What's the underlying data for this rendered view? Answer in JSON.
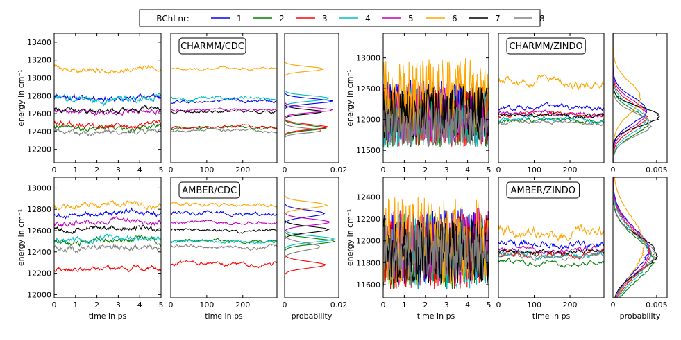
{
  "legend": {
    "title": "BChl nr:",
    "entries": [
      {
        "label": "1",
        "color": "#0000ff"
      },
      {
        "label": "2",
        "color": "#008000"
      },
      {
        "label": "3",
        "color": "#ff0000"
      },
      {
        "label": "4",
        "color": "#00bfbf"
      },
      {
        "label": "5",
        "color": "#bf00bf"
      },
      {
        "label": "6",
        "color": "#ffa500"
      },
      {
        "label": "7",
        "color": "#000000"
      },
      {
        "label": "8",
        "color": "#808080"
      }
    ]
  },
  "chart_data": [
    {
      "id": "charmm-cdc-time",
      "type": "line",
      "title": "",
      "xlabel": "",
      "ylabel": "energy in cm⁻¹",
      "xlim": [
        0,
        5
      ],
      "ylim": [
        12050,
        13500
      ],
      "xticks": [
        0,
        1,
        2,
        3,
        4,
        5
      ],
      "yticks": [
        12200,
        12400,
        12600,
        12800,
        13000,
        13200,
        13400
      ],
      "series": [
        {
          "name": "1",
          "mean": 12780,
          "noise": 45
        },
        {
          "name": "2",
          "mean": 12440,
          "noise": 40
        },
        {
          "name": "3",
          "mean": 12470,
          "noise": 40
        },
        {
          "name": "4",
          "mean": 12760,
          "noise": 50
        },
        {
          "name": "5",
          "mean": 12620,
          "noise": 35
        },
        {
          "name": "6",
          "mean": 13100,
          "noise": 40
        },
        {
          "name": "7",
          "mean": 12640,
          "noise": 35
        },
        {
          "name": "8",
          "mean": 12390,
          "noise": 35
        }
      ]
    },
    {
      "id": "charmm-cdc-long",
      "type": "line",
      "title": "CHARMM/CDC",
      "xlabel": "",
      "ylabel": "",
      "xlim": [
        0,
        295
      ],
      "ylim": [
        12050,
        13500
      ],
      "xticks": [
        0,
        100,
        200
      ],
      "yticks": [],
      "series": [
        {
          "name": "1",
          "mean": 12740,
          "noise": 25
        },
        {
          "name": "2",
          "mean": 12440,
          "noise": 20
        },
        {
          "name": "3",
          "mean": 12450,
          "noise": 20
        },
        {
          "name": "4",
          "mean": 12770,
          "noise": 25
        },
        {
          "name": "5",
          "mean": 12640,
          "noise": 20
        },
        {
          "name": "6",
          "mean": 13100,
          "noise": 20
        },
        {
          "name": "7",
          "mean": 12620,
          "noise": 20
        },
        {
          "name": "8",
          "mean": 12410,
          "noise": 20
        }
      ]
    },
    {
      "id": "charmm-cdc-prob",
      "type": "line",
      "title": "",
      "xlabel": "",
      "ylabel": "",
      "xlim": [
        0,
        0.02
      ],
      "ylim": [
        12050,
        13500
      ],
      "xticks": [
        0,
        0.02
      ],
      "yticks": [],
      "series": [
        {
          "name": "1",
          "mean": 12740,
          "sd": 28,
          "peak": 0.0175
        },
        {
          "name": "2",
          "mean": 12440,
          "sd": 28,
          "peak": 0.015
        },
        {
          "name": "3",
          "mean": 12450,
          "sd": 28,
          "peak": 0.016
        },
        {
          "name": "4",
          "mean": 12770,
          "sd": 28,
          "peak": 0.017
        },
        {
          "name": "5",
          "mean": 12640,
          "sd": 26,
          "peak": 0.018
        },
        {
          "name": "6",
          "mean": 13100,
          "sd": 25,
          "peak": 0.015
        },
        {
          "name": "7",
          "mean": 12620,
          "sd": 25,
          "peak": 0.014
        },
        {
          "name": "8",
          "mean": 12410,
          "sd": 25,
          "peak": 0.014
        }
      ]
    },
    {
      "id": "charmm-zindo-time",
      "type": "line",
      "title": "",
      "xlabel": "",
      "ylabel": "energy in cm⁻¹",
      "xlim": [
        0,
        5
      ],
      "ylim": [
        11300,
        13400
      ],
      "xticks": [
        0,
        1,
        2,
        3,
        4,
        5
      ],
      "yticks": [
        11500,
        12000,
        12500,
        13000
      ],
      "series": [
        {
          "name": "1",
          "mean": 12150,
          "noise": 500
        },
        {
          "name": "2",
          "mean": 12000,
          "noise": 450
        },
        {
          "name": "3",
          "mean": 12050,
          "noise": 500
        },
        {
          "name": "4",
          "mean": 12050,
          "noise": 500
        },
        {
          "name": "5",
          "mean": 12100,
          "noise": 500
        },
        {
          "name": "6",
          "mean": 12400,
          "noise": 600
        },
        {
          "name": "7",
          "mean": 12100,
          "noise": 450
        },
        {
          "name": "8",
          "mean": 11900,
          "noise": 350
        }
      ]
    },
    {
      "id": "charmm-zindo-long",
      "type": "line",
      "title": "CHARMM/ZINDO",
      "xlabel": "",
      "ylabel": "",
      "xlim": [
        0,
        295
      ],
      "ylim": [
        11300,
        13400
      ],
      "xticks": [
        0,
        100,
        200
      ],
      "yticks": [],
      "series": [
        {
          "name": "1",
          "mean": 12200,
          "noise": 60
        },
        {
          "name": "2",
          "mean": 11980,
          "noise": 45
        },
        {
          "name": "3",
          "mean": 12080,
          "noise": 50
        },
        {
          "name": "4",
          "mean": 12020,
          "noise": 50
        },
        {
          "name": "5",
          "mean": 12100,
          "noise": 50
        },
        {
          "name": "6",
          "mean": 12600,
          "noise": 100
        },
        {
          "name": "7",
          "mean": 12070,
          "noise": 45
        },
        {
          "name": "8",
          "mean": 11950,
          "noise": 40
        }
      ]
    },
    {
      "id": "charmm-zindo-prob",
      "type": "line",
      "title": "",
      "xlabel": "",
      "ylabel": "",
      "xlim": [
        0,
        0.0062
      ],
      "ylim": [
        11300,
        13400
      ],
      "xticks": [
        0,
        0.005
      ],
      "yticks": [],
      "series": [
        {
          "name": "1",
          "mean": 12150,
          "sd": 210,
          "peak": 0.0038
        },
        {
          "name": "2",
          "mean": 11950,
          "sd": 200,
          "peak": 0.004
        },
        {
          "name": "3",
          "mean": 12050,
          "sd": 210,
          "peak": 0.0038
        },
        {
          "name": "4",
          "mean": 12000,
          "sd": 210,
          "peak": 0.0038
        },
        {
          "name": "5",
          "mean": 12100,
          "sd": 210,
          "peak": 0.0038
        },
        {
          "name": "6",
          "mean": 12350,
          "sd": 260,
          "peak": 0.0031
        },
        {
          "name": "7",
          "mean": 12050,
          "sd": 150,
          "peak": 0.0053
        },
        {
          "name": "8",
          "mean": 11920,
          "sd": 180,
          "peak": 0.0044
        }
      ]
    },
    {
      "id": "amber-cdc-time",
      "type": "line",
      "title": "",
      "xlabel": "time in ps",
      "ylabel": "energy in cm⁻¹",
      "xlim": [
        0,
        5
      ],
      "ylim": [
        11970,
        13100
      ],
      "xticks": [
        0,
        1,
        2,
        3,
        4,
        5
      ],
      "yticks": [
        12000,
        12200,
        12400,
        12600,
        12800,
        13000
      ],
      "series": [
        {
          "name": "1",
          "mean": 12760,
          "noise": 35
        },
        {
          "name": "2",
          "mean": 12500,
          "noise": 35
        },
        {
          "name": "3",
          "mean": 12240,
          "noise": 30
        },
        {
          "name": "4",
          "mean": 12520,
          "noise": 35
        },
        {
          "name": "5",
          "mean": 12680,
          "noise": 35
        },
        {
          "name": "6",
          "mean": 12840,
          "noise": 35
        },
        {
          "name": "7",
          "mean": 12620,
          "noise": 30
        },
        {
          "name": "8",
          "mean": 12440,
          "noise": 40
        }
      ]
    },
    {
      "id": "amber-cdc-long",
      "type": "line",
      "title": "AMBER/CDC",
      "xlabel": "time in ps",
      "ylabel": "",
      "xlim": [
        0,
        295
      ],
      "ylim": [
        11970,
        13100
      ],
      "xticks": [
        0,
        100,
        200
      ],
      "yticks": [],
      "series": [
        {
          "name": "1",
          "mean": 12760,
          "noise": 25
        },
        {
          "name": "2",
          "mean": 12500,
          "noise": 20
        },
        {
          "name": "3",
          "mean": 12290,
          "noise": 25
        },
        {
          "name": "4",
          "mean": 12500,
          "noise": 20
        },
        {
          "name": "5",
          "mean": 12680,
          "noise": 20
        },
        {
          "name": "6",
          "mean": 12840,
          "noise": 20
        },
        {
          "name": "7",
          "mean": 12600,
          "noise": 20
        },
        {
          "name": "8",
          "mean": 12450,
          "noise": 25
        }
      ]
    },
    {
      "id": "amber-cdc-prob",
      "type": "line",
      "title": "",
      "xlabel": "probability",
      "ylabel": "",
      "xlim": [
        0,
        0.02
      ],
      "ylim": [
        11970,
        13100
      ],
      "xticks": [
        0,
        0.02
      ],
      "yticks": [],
      "series": [
        {
          "name": "1",
          "mean": 12760,
          "sd": 30,
          "peak": 0.015
        },
        {
          "name": "2",
          "mean": 12500,
          "sd": 28,
          "peak": 0.018
        },
        {
          "name": "3",
          "mean": 12280,
          "sd": 30,
          "peak": 0.015
        },
        {
          "name": "4",
          "mean": 12520,
          "sd": 28,
          "peak": 0.018
        },
        {
          "name": "5",
          "mean": 12680,
          "sd": 28,
          "peak": 0.017
        },
        {
          "name": "6",
          "mean": 12840,
          "sd": 28,
          "peak": 0.016
        },
        {
          "name": "7",
          "mean": 12610,
          "sd": 28,
          "peak": 0.016
        },
        {
          "name": "8",
          "mean": 12450,
          "sd": 35,
          "peak": 0.013
        }
      ]
    },
    {
      "id": "amber-zindo-time",
      "type": "line",
      "title": "",
      "xlabel": "time in ps",
      "ylabel": "energy in cm⁻¹",
      "xlim": [
        0,
        5
      ],
      "ylim": [
        11480,
        12580
      ],
      "xticks": [
        0,
        1,
        2,
        3,
        4,
        5
      ],
      "yticks": [
        11600,
        11800,
        12000,
        12200,
        12400
      ],
      "series": [
        {
          "name": "1",
          "mean": 11950,
          "noise": 350
        },
        {
          "name": "2",
          "mean": 11850,
          "noise": 300
        },
        {
          "name": "3",
          "mean": 11900,
          "noise": 350
        },
        {
          "name": "4",
          "mean": 11900,
          "noise": 350
        },
        {
          "name": "5",
          "mean": 11950,
          "noise": 350
        },
        {
          "name": "6",
          "mean": 12000,
          "noise": 400
        },
        {
          "name": "7",
          "mean": 11900,
          "noise": 300
        },
        {
          "name": "8",
          "mean": 11900,
          "noise": 250
        }
      ]
    },
    {
      "id": "amber-zindo-long",
      "type": "line",
      "title": "AMBER/ZINDO",
      "xlabel": "time in ps",
      "ylabel": "",
      "xlim": [
        0,
        295
      ],
      "ylim": [
        11480,
        12580
      ],
      "xticks": [
        0,
        100,
        200
      ],
      "yticks": [],
      "series": [
        {
          "name": "1",
          "mean": 11970,
          "noise": 45
        },
        {
          "name": "2",
          "mean": 11800,
          "noise": 30
        },
        {
          "name": "3",
          "mean": 11880,
          "noise": 35
        },
        {
          "name": "4",
          "mean": 11870,
          "noise": 35
        },
        {
          "name": "5",
          "mean": 11920,
          "noise": 35
        },
        {
          "name": "6",
          "mean": 12080,
          "noise": 70
        },
        {
          "name": "7",
          "mean": 11900,
          "noise": 30
        },
        {
          "name": "8",
          "mean": 11860,
          "noise": 30
        }
      ]
    },
    {
      "id": "amber-zindo-prob",
      "type": "line",
      "title": "",
      "xlabel": "probability",
      "ylabel": "",
      "xlim": [
        0,
        0.0062
      ],
      "ylim": [
        11480,
        12580
      ],
      "xticks": [
        0,
        0.005
      ],
      "yticks": [],
      "series": [
        {
          "name": "1",
          "mean": 11920,
          "sd": 200,
          "peak": 0.004
        },
        {
          "name": "2",
          "mean": 11830,
          "sd": 190,
          "peak": 0.0046
        },
        {
          "name": "3",
          "mean": 11880,
          "sd": 200,
          "peak": 0.0042
        },
        {
          "name": "4",
          "mean": 11860,
          "sd": 200,
          "peak": 0.0043
        },
        {
          "name": "5",
          "mean": 11900,
          "sd": 200,
          "peak": 0.0042
        },
        {
          "name": "6",
          "mean": 11960,
          "sd": 250,
          "peak": 0.0036
        },
        {
          "name": "7",
          "mean": 11880,
          "sd": 160,
          "peak": 0.005
        },
        {
          "name": "8",
          "mean": 11870,
          "sd": 170,
          "peak": 0.0047
        }
      ]
    }
  ]
}
